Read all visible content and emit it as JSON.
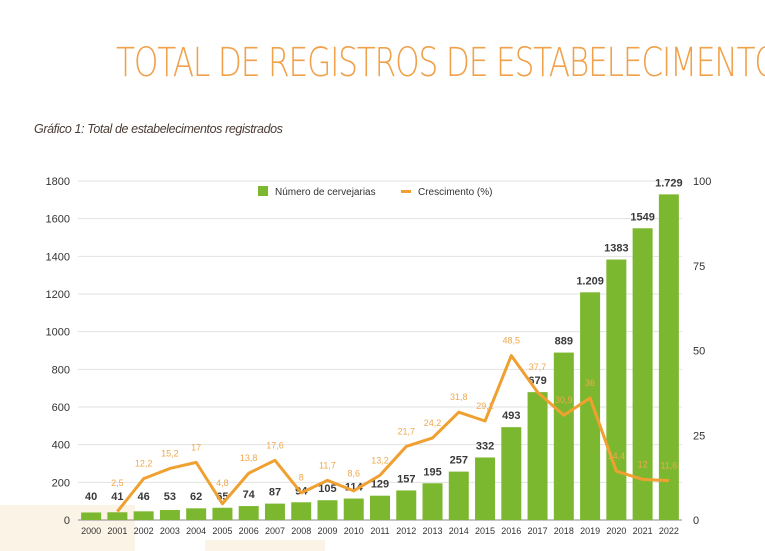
{
  "header": {
    "title": "TOTAL DE REGISTROS DE ESTABELECIMENTO"
  },
  "chart_data": {
    "type": "bar+line",
    "caption": "Gráfico 1: Total de estabelecimentos registrados",
    "categories": [
      "2000",
      "2001",
      "2002",
      "2003",
      "2004",
      "2005",
      "2006",
      "2007",
      "2008",
      "2009",
      "2010",
      "2011",
      "2012",
      "2013",
      "2014",
      "2015",
      "2016",
      "2017",
      "2018",
      "2019",
      "2020",
      "2021",
      "2022"
    ],
    "series": [
      {
        "name": "Número de cervejarias",
        "type": "bar",
        "axis": "left",
        "color": "#7cb82f",
        "values": [
          40,
          41,
          46,
          53,
          62,
          65,
          74,
          87,
          94,
          105,
          114,
          129,
          157,
          195,
          257,
          332,
          493,
          679,
          889,
          1209,
          1383,
          1549,
          1729
        ],
        "labels": [
          "40",
          "41",
          "46",
          "53",
          "62",
          "65",
          "74",
          "87",
          "94",
          "105",
          "114",
          "129",
          "157",
          "195",
          "257",
          "332",
          "493",
          "679",
          "889",
          "1.209",
          "1383",
          "1549",
          "1.729"
        ]
      },
      {
        "name": "Crescimento (%)",
        "type": "line",
        "axis": "right",
        "color": "#f0a030",
        "values": [
          null,
          2.5,
          12.2,
          15.2,
          17,
          4.8,
          13.8,
          17.6,
          8,
          11.7,
          8.6,
          13.2,
          21.7,
          24.2,
          31.8,
          29.2,
          48.5,
          37.7,
          30.9,
          36,
          14.4,
          12,
          11.6
        ],
        "labels": [
          "",
          "2,5",
          "12,2",
          "15,2",
          "17",
          "4,8",
          "13,8",
          "17,6",
          "8",
          "11,7",
          "8,6",
          "13,2",
          "21,7",
          "24,2",
          "31,8",
          "29,2",
          "48,5",
          "37,7",
          "30,9",
          "36",
          "14,4",
          "12",
          "11,6"
        ]
      }
    ],
    "y_left": {
      "range": [
        0,
        1800
      ],
      "ticks": [
        "0",
        "200",
        "400",
        "600",
        "800",
        "1000",
        "1200",
        "1400",
        "1600",
        "1800"
      ]
    },
    "y_right": {
      "range": [
        0,
        100
      ],
      "ticks": [
        "0",
        "25",
        "50",
        "75",
        "100"
      ]
    },
    "grid": true,
    "legend": "top-center"
  }
}
